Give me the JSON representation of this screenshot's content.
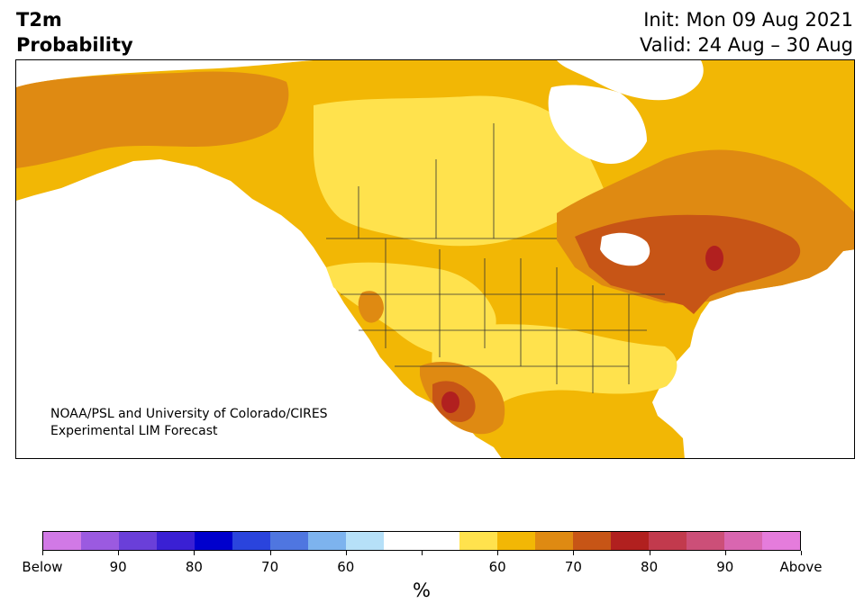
{
  "title": {
    "line1": "T2m",
    "line2": "Probability"
  },
  "info": {
    "init": "Init: Mon 09 Aug 2021",
    "valid": "Valid: 24 Aug – 30 Aug"
  },
  "credit": {
    "line1": "NOAA/PSL and University of Colorado/CIRES",
    "line2": "Experimental LIM Forecast"
  },
  "colors": {
    "below": [
      "#d179e6",
      "#9b5ae0",
      "#6a3fd9",
      "#3a20d4",
      "#0000cd",
      "#2a44dd",
      "#4f76e0",
      "#7db3ee",
      "#b6e0f8"
    ],
    "neutral": "#ffffff",
    "above": [
      "#ffe24d",
      "#f2b705",
      "#df8a12",
      "#c75516",
      "#b1201f",
      "#c23a4d",
      "#cc4f78",
      "#d966b0",
      "#e57cdc"
    ]
  },
  "colorbar": {
    "labels": [
      "Below",
      "90",
      "80",
      "70",
      "60",
      "60",
      "70",
      "80",
      "90",
      "Above"
    ],
    "unit": "%"
  }
}
